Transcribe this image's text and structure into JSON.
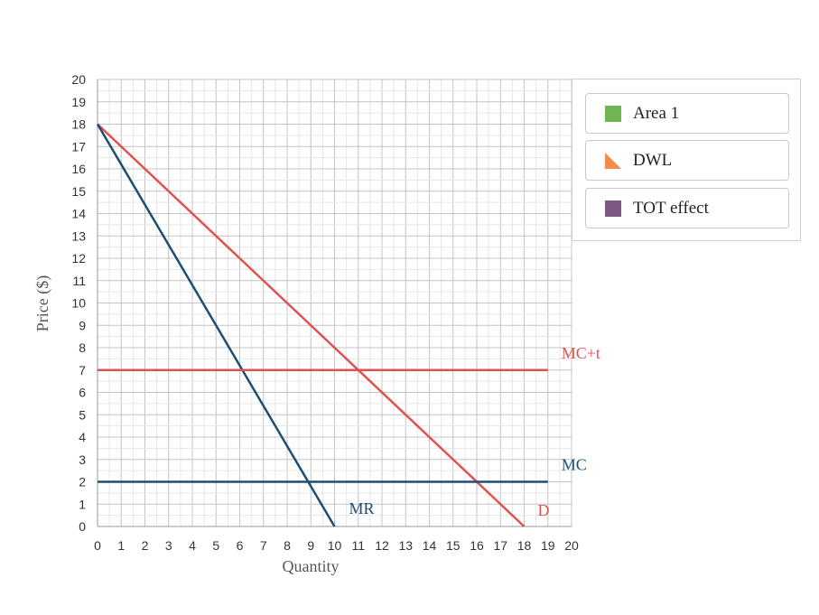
{
  "chart_data": {
    "type": "line",
    "xlabel": "Quantity",
    "ylabel": "Price ($)",
    "xlim": [
      0,
      20
    ],
    "ylim": [
      0,
      20
    ],
    "xticks": [
      0,
      1,
      2,
      3,
      4,
      5,
      6,
      7,
      8,
      9,
      10,
      11,
      12,
      13,
      14,
      15,
      16,
      17,
      18,
      19,
      20
    ],
    "yticks": [
      0,
      1,
      2,
      3,
      4,
      5,
      6,
      7,
      8,
      9,
      10,
      11,
      12,
      13,
      14,
      15,
      16,
      17,
      18,
      19,
      20
    ],
    "grid": true,
    "series": [
      {
        "name": "D",
        "color": "#e05252",
        "points": [
          [
            0,
            18
          ],
          [
            18,
            0
          ]
        ]
      },
      {
        "name": "MR",
        "color": "#1d4e74",
        "points": [
          [
            0,
            18
          ],
          [
            10,
            0
          ]
        ]
      },
      {
        "name": "MC+t",
        "color": "#e05252",
        "points": [
          [
            0,
            7
          ],
          [
            19,
            7
          ]
        ]
      },
      {
        "name": "MC",
        "color": "#1d4e74",
        "points": [
          [
            0,
            2
          ],
          [
            19,
            2
          ]
        ]
      }
    ]
  },
  "legend": {
    "items": [
      {
        "label": "Area 1",
        "color": "#6fb552",
        "shape": "square"
      },
      {
        "label": "DWL",
        "color": "#f28b4b",
        "shape": "triangle"
      },
      {
        "label": "TOT effect",
        "color": "#7d5a85",
        "shape": "square"
      }
    ]
  }
}
